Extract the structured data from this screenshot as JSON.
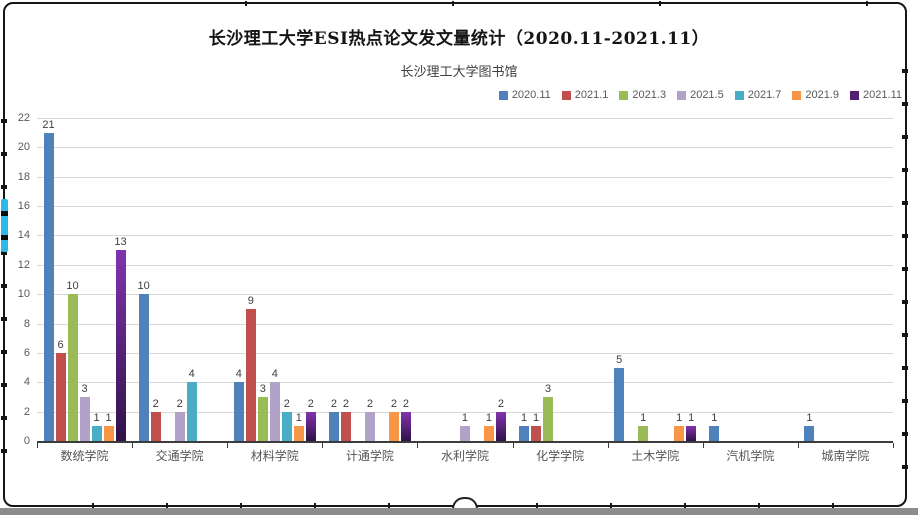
{
  "chart_data": {
    "type": "bar",
    "title": "长沙理工大学ESI热点论文发文量统计（2020.11-2021.11）",
    "subtitle": "长沙理工大学图书馆",
    "categories": [
      "数统学院",
      "交通学院",
      "材料学院",
      "计通学院",
      "水利学院",
      "化学学院",
      "土木学院",
      "汽机学院",
      "城南学院"
    ],
    "series": [
      {
        "name": "2020.11",
        "color": "#4f81bd",
        "values": [
          21,
          10,
          4,
          2,
          0,
          1,
          5,
          1,
          1
        ]
      },
      {
        "name": "2021.1",
        "color": "#c0504d",
        "values": [
          6,
          2,
          9,
          2,
          0,
          1,
          0,
          0,
          0
        ]
      },
      {
        "name": "2021.3",
        "color": "#9bbb59",
        "values": [
          10,
          0,
          3,
          0,
          0,
          3,
          1,
          0,
          0
        ]
      },
      {
        "name": "2021.5",
        "color": "#b3a2c7",
        "values": [
          3,
          2,
          4,
          2,
          1,
          0,
          0,
          0,
          0
        ]
      },
      {
        "name": "2021.7",
        "color": "#4bacc6",
        "values": [
          1,
          4,
          2,
          0,
          0,
          0,
          0,
          0,
          0
        ]
      },
      {
        "name": "2021.9",
        "color": "#f79646",
        "values": [
          1,
          0,
          1,
          2,
          1,
          0,
          1,
          0,
          0
        ]
      },
      {
        "name": "2021.11",
        "color": "#4f2170",
        "gradient": [
          "#8233ae",
          "#2f1248"
        ],
        "values": [
          13,
          0,
          2,
          2,
          2,
          0,
          1,
          0,
          0
        ]
      }
    ],
    "ylabel": "",
    "xlabel": "",
    "ylim": [
      0,
      22
    ],
    "ytick_step": 2,
    "grid": true,
    "legend_position": "top-right",
    "data_labels": true
  },
  "chrome": {
    "scroll_thumb_color": "#2eb8e6",
    "bottom_bar_color": "#8c8c8c",
    "frame_color": "#161616"
  }
}
